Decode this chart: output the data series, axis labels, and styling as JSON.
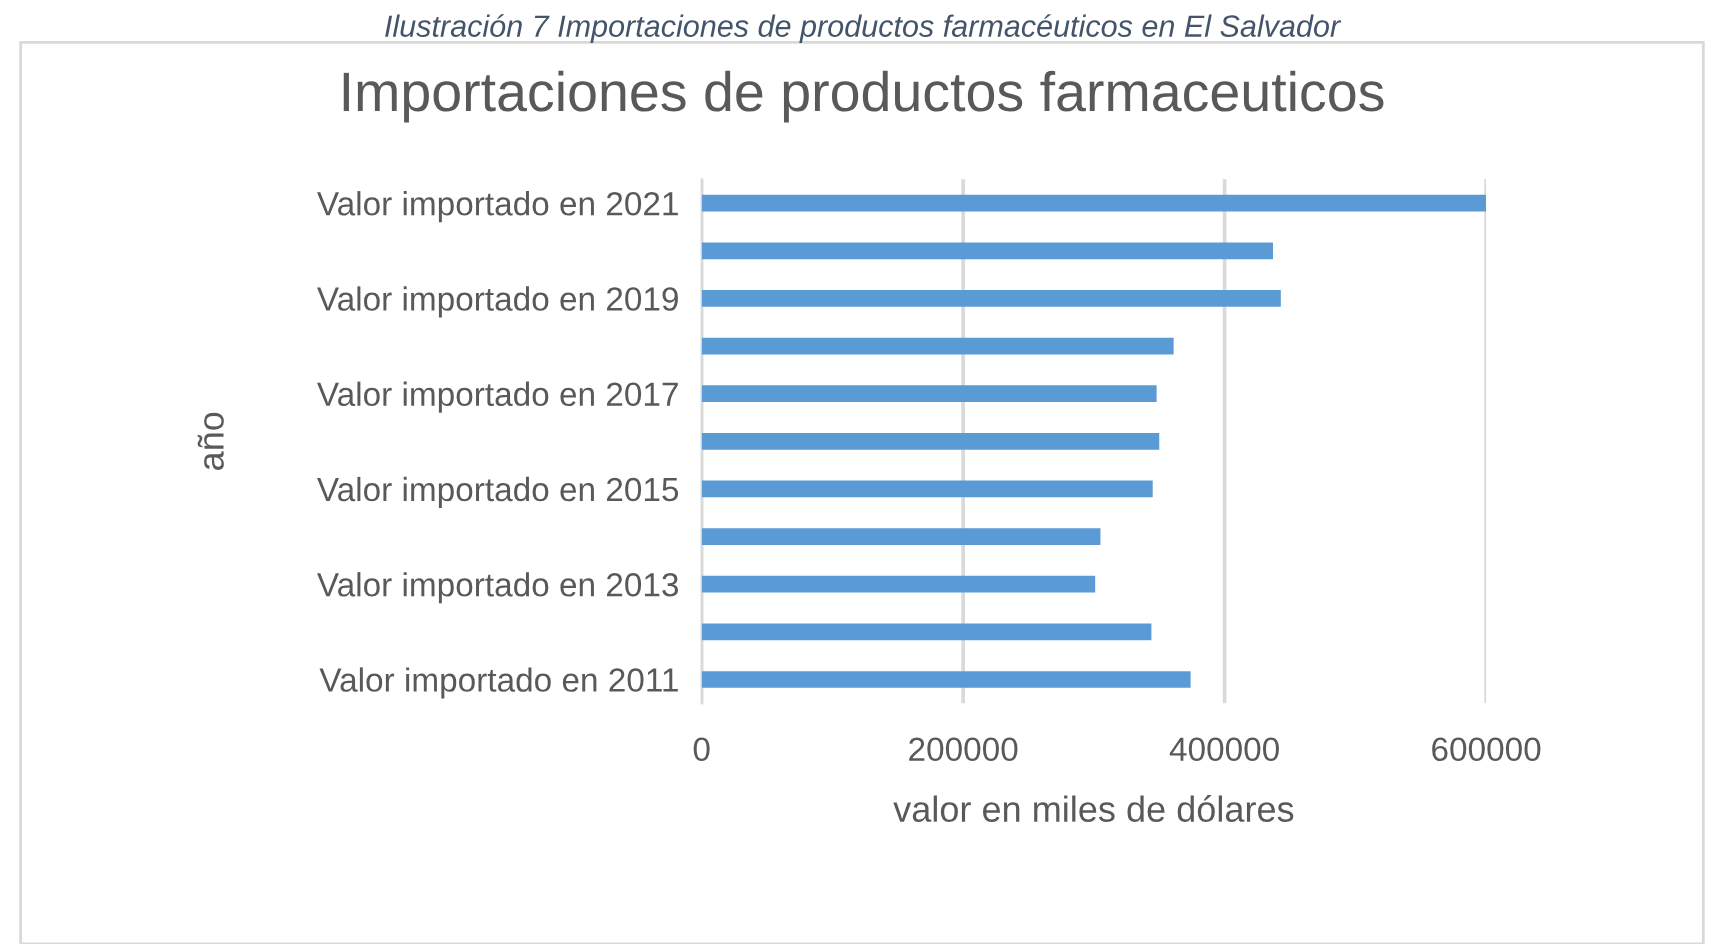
{
  "chart_data": {
    "type": "bar",
    "orientation": "horizontal",
    "title": "Importaciones de productos farmaceuticos",
    "xlabel": "valor en miles de dólares",
    "ylabel": "año",
    "annotations": [
      "Ilustración 7 Importaciones de productos farmacéuticos en El Salvador"
    ],
    "categories": [
      "Valor importado en 2021",
      null,
      "Valor importado en 2019",
      null,
      "Valor importado en 2017",
      null,
      "Valor importado en 2015",
      null,
      "Valor importado en 2013",
      null,
      "Valor importado en 2011"
    ],
    "values": [
      600000,
      437000,
      443000,
      361000,
      348000,
      350000,
      345000,
      305000,
      301000,
      344000,
      374000
    ],
    "color": "#5b9bd5",
    "xlim": [
      0,
      600000
    ],
    "xticks": [
      0,
      200000,
      400000,
      600000
    ],
    "grid": "x",
    "legend": false
  }
}
